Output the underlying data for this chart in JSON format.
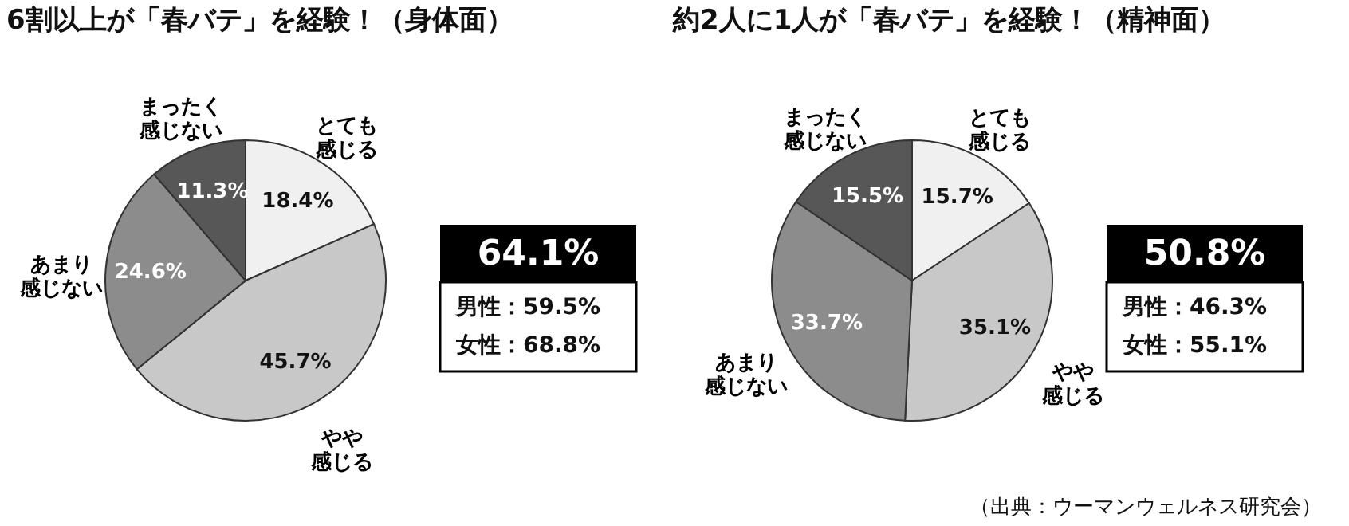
{
  "chart_data": [
    {
      "type": "pie",
      "title": "6割以上が「春バテ」を経験！（身体面）",
      "categories": [
        "とても感じる",
        "やや感じる",
        "あまり感じない",
        "まったく感じない"
      ],
      "values": [
        18.4,
        45.7,
        24.6,
        11.3
      ],
      "value_labels": [
        "18.4%",
        "45.7%",
        "24.6%",
        "11.3%"
      ],
      "colors": [
        "#f0f0f0",
        "#c8c8c8",
        "#8c8c8c",
        "#575757"
      ],
      "annotations": [
        "64.1%",
        "男性：59.5%",
        "女性：68.8%"
      ]
    },
    {
      "type": "pie",
      "title": "約2人に1人が「春バテ」を経験！（精神面）",
      "categories": [
        "とても感じる",
        "やや感じる",
        "あまり感じない",
        "まったく感じない"
      ],
      "values": [
        15.7,
        35.1,
        33.7,
        15.5
      ],
      "value_labels": [
        "15.7%",
        "35.1%",
        "33.7%",
        "15.5%"
      ],
      "colors": [
        "#f0f0f0",
        "#c8c8c8",
        "#8c8c8c",
        "#575757"
      ],
      "annotations": [
        "50.8%",
        "男性：46.3%",
        "女性：55.1%",
        "（出典：ウーマンウェルネス研究会）"
      ]
    }
  ]
}
